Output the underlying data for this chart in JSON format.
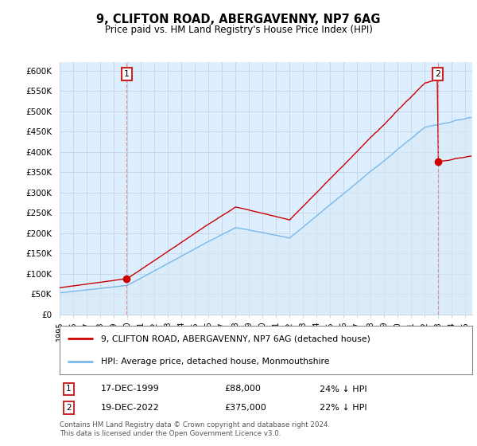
{
  "title": "9, CLIFTON ROAD, ABERGAVENNY, NP7 6AG",
  "subtitle": "Price paid vs. HM Land Registry's House Price Index (HPI)",
  "ylabel_ticks": [
    "£0",
    "£50K",
    "£100K",
    "£150K",
    "£200K",
    "£250K",
    "£300K",
    "£350K",
    "£400K",
    "£450K",
    "£500K",
    "£550K",
    "£600K"
  ],
  "ytick_values": [
    0,
    50000,
    100000,
    150000,
    200000,
    250000,
    300000,
    350000,
    400000,
    450000,
    500000,
    550000,
    600000
  ],
  "ylim": [
    0,
    620000
  ],
  "hpi_color": "#7ab8e8",
  "hpi_fill_color": "#d8eaf8",
  "price_color": "#cc0000",
  "background_color": "#ffffff",
  "chart_bg_color": "#ddeeff",
  "grid_color": "#c8d8e8",
  "ann1_x": 1999.958,
  "ann1_y": 88000,
  "ann2_x": 2022.958,
  "ann2_y": 375000,
  "ann_box_color": "#cc2222",
  "ann_vline_color": "#e08080",
  "annotation1": {
    "label": "1",
    "date": "17-DEC-1999",
    "price": "£88,000",
    "pct": "24% ↓ HPI"
  },
  "annotation2": {
    "label": "2",
    "date": "19-DEC-2022",
    "price": "£375,000",
    "pct": "22% ↓ HPI"
  },
  "legend_entry1": "9, CLIFTON ROAD, ABERGAVENNY, NP7 6AG (detached house)",
  "legend_entry2": "HPI: Average price, detached house, Monmouthshire",
  "footer": "Contains HM Land Registry data © Crown copyright and database right 2024.\nThis data is licensed under the Open Government Licence v3.0.",
  "xmin": 1995.0,
  "xmax": 2025.5
}
